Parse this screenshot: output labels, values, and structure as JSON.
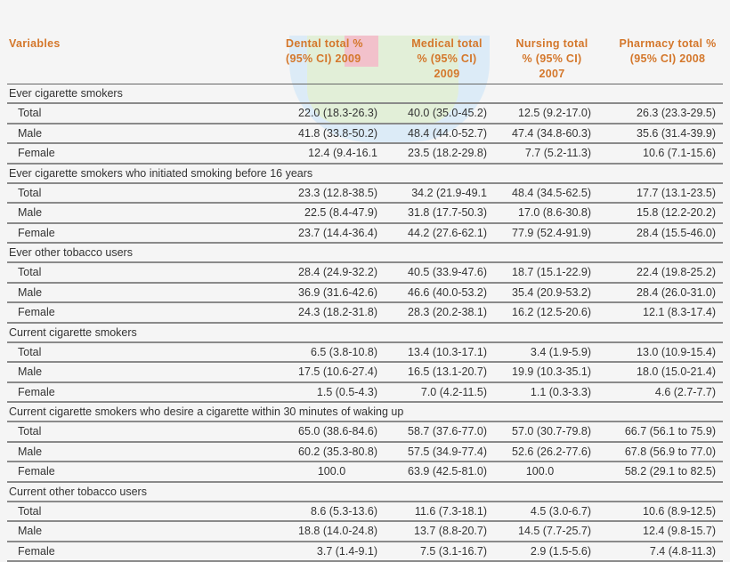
{
  "header": {
    "variables": "Variables",
    "columns": [
      "Dental total % (95% CI) 2009",
      "Medical total % (95% CI) 2009",
      "Nursing total % (95% CI) 2007",
      "Pharmacy total % (95% CI) 2008"
    ],
    "col1_line1": "Dental total %",
    "col1_line2": "(95% CI) 2009",
    "col2_line1": "Medical total",
    "col2_line2": "% (95% CI)",
    "col2_line3": "2009",
    "col3_line1": "Nursing total",
    "col3_line2": "% (95% CI)",
    "col3_line3": "2007",
    "col4_line1": "Pharmacy total %",
    "col4_line2": "(95% CI) 2008"
  },
  "colors": {
    "header_text": "#d4772b",
    "body_text": "#333333",
    "rule": "#8a8a8a",
    "background": "#f5f5f5"
  },
  "sections": [
    {
      "title": "Ever cigarette smokers",
      "rows": [
        {
          "label": "Total",
          "values": [
            "22.0 (18.3-26.3)",
            "40.0 (35.0-45.2)",
            "12.5 (9.2-17.0)",
            "26.3 (23.3-29.5)"
          ]
        },
        {
          "label": "Male",
          "values": [
            "41.8 (33.8-50.2)",
            "48.4 (44.0-52.7)",
            "47.4 (34.8-60.3)",
            "35.6 (31.4-39.9)"
          ]
        },
        {
          "label": "Female",
          "values": [
            "12.4 (9.4-16.1",
            "23.5 (18.2-29.8)",
            "7.7 (5.2-11.3)",
            "10.6 (7.1-15.6)"
          ]
        }
      ]
    },
    {
      "title": "Ever cigarette smokers who initiated smoking before 16 years",
      "rows": [
        {
          "label": "Total",
          "values": [
            "23.3 (12.8-38.5)",
            "34.2 (21.9-49.1",
            "48.4 (34.5-62.5)",
            "17.7 (13.1-23.5)"
          ]
        },
        {
          "label": "Male",
          "values": [
            "22.5 (8.4-47.9)",
            "31.8 (17.7-50.3)",
            "17.0 (8.6-30.8)",
            "15.8 (12.2-20.2)"
          ]
        },
        {
          "label": "Female",
          "values": [
            "23.7 (14.4-36.4)",
            "44.2 (27.6-62.1)",
            "77.9 (52.4-91.9)",
            "28.4 (15.5-46.0)"
          ]
        }
      ]
    },
    {
      "title": "Ever other tobacco users",
      "rows": [
        {
          "label": "Total",
          "values": [
            "28.4 (24.9-32.2)",
            "40.5 (33.9-47.6)",
            "18.7 (15.1-22.9)",
            "22.4 (19.8-25.2)"
          ]
        },
        {
          "label": "Male",
          "values": [
            "36.9 (31.6-42.6)",
            "46.6 (40.0-53.2)",
            "35.4 (20.9-53.2)",
            "28.4 (26.0-31.0)"
          ]
        },
        {
          "label": "Female",
          "values": [
            "24.3 (18.2-31.8)",
            "28.3 (20.2-38.1)",
            "16.2 (12.5-20.6)",
            "12.1 (8.3-17.4)"
          ]
        }
      ]
    },
    {
      "title": "Current cigarette smokers",
      "rows": [
        {
          "label": "Total",
          "values": [
            "6.5 (3.8-10.8)",
            "13.4 (10.3-17.1)",
            "3.4 (1.9-5.9)",
            "13.0 (10.9-15.4)"
          ]
        },
        {
          "label": "Male",
          "values": [
            "17.5 (10.6-27.4)",
            "16.5 (13.1-20.7)",
            "19.9 (10.3-35.1)",
            "18.0 (15.0-21.4)"
          ]
        },
        {
          "label": "Female",
          "values": [
            "1.5 (0.5-4.3)",
            "7.0 (4.2-11.5)",
            "1.1 (0.3-3.3)",
            "4.6 (2.7-7.7)"
          ]
        }
      ]
    },
    {
      "title": "Current cigarette smokers who desire a cigarette within 30 minutes of waking up",
      "rows": [
        {
          "label": "Total",
          "values": [
            "65.0 (38.6-84.6)",
            "58.7 (37.6-77.0)",
            "57.0 (30.7-79.8)",
            "66.7 (56.1 to 75.9)"
          ]
        },
        {
          "label": "Male",
          "values": [
            "60.2 (35.3-80.8)",
            "57.5 (34.9-77.4)",
            "52.6 (26.2-77.6)",
            "67.8 (56.9 to 77.0)"
          ]
        },
        {
          "label": "Female",
          "values": [
            "100.0",
            "63.9 (42.5-81.0)",
            "100.0",
            "58.2 (29.1 to 82.5)"
          ]
        }
      ]
    },
    {
      "title": "Current other tobacco users",
      "rows": [
        {
          "label": "Total",
          "values": [
            "8.6 (5.3-13.6)",
            "11.6 (7.3-18.1)",
            "4.5 (3.0-6.7)",
            "10.6 (8.9-12.5)"
          ]
        },
        {
          "label": "Male",
          "values": [
            "18.8 (14.0-24.8)",
            "13.7 (8.8-20.7)",
            "14.5 (7.7-25.7)",
            "12.4 (9.8-15.7)"
          ]
        },
        {
          "label": "Female",
          "values": [
            "3.7 (1.4-9.1)",
            "7.5 (3.1-16.7)",
            "2.9 (1.5-5.6)",
            "7.4 (4.8-11.3)"
          ]
        }
      ]
    }
  ]
}
